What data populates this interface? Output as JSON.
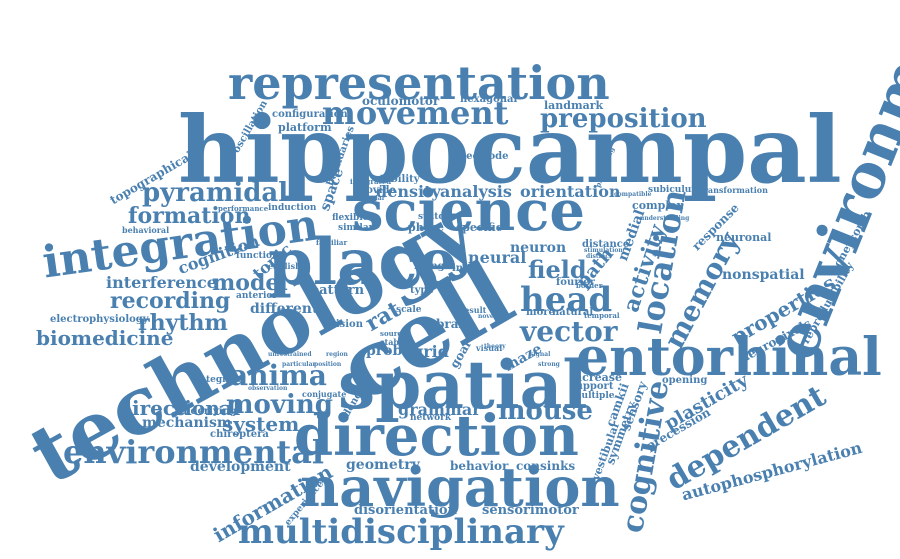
{
  "colors": {
    "word": "#4a80b0",
    "background": "#ffffff"
  },
  "words": [
    "hippocampal",
    "technology",
    "cell",
    "spatial",
    "environment",
    "place",
    "science",
    "navigation",
    "direction",
    "entorhinal",
    "representation",
    "integration",
    "multidisciplinary",
    "movement",
    "cognitive",
    "head",
    "location",
    "vector",
    "environmental",
    "dependent",
    "memory",
    "anima",
    "preposition",
    "pyramidal",
    "moving",
    "mouse",
    "formation",
    "field",
    "recording",
    "rhythm",
    "activity",
    "biomedicine",
    "directional",
    "model",
    "properties",
    "system",
    "information",
    "plasticity",
    "autophosphorylation",
    "cognition",
    "interference",
    "path",
    "neural",
    "analysis",
    "orientation",
    "grammar",
    "geometry",
    "development",
    "mechanism",
    "nonspatial",
    "disorientation",
    "sensorimotor",
    "behavior",
    "consinks",
    "topographical",
    "oculomotor",
    "grid",
    "probe",
    "rat",
    "topic",
    "density",
    "space",
    "reproducibility",
    "neuron",
    "medial",
    "maze",
    "platform",
    "honeycomb",
    "electrophysiology",
    "different",
    "underlying",
    "chiroptera",
    "sensory",
    "symmetry",
    "vestibular",
    "camkii",
    "precession",
    "neuropixels",
    "landmark",
    "hexagonal",
    "configuration",
    "oscillation",
    "stability",
    "integrated",
    "provide",
    "electrode",
    "boundaries",
    "complex",
    "response",
    "neuronal",
    "subiculum",
    "transformation",
    "phase",
    "switch",
    "specific",
    "distance",
    "fourier",
    "natural",
    "more",
    "brain",
    "pattern",
    "anterior",
    "function",
    "english",
    "vision",
    "dendrite",
    "scale",
    "firing",
    "input",
    "type",
    "goal",
    "increase",
    "support",
    "multiple",
    "opening",
    "integrate",
    "experience",
    "network",
    "stable",
    "conjugate",
    "behavioral",
    "performance",
    "induction",
    "flexible",
    "similar",
    "familiar",
    "unrestrained",
    "particular",
    "position",
    "observation",
    "visual",
    "temporal",
    "result",
    "source",
    "region",
    "compatible",
    "processing",
    "theory",
    "strong",
    "signal",
    "understanding",
    "distinct",
    "stimulation",
    "border",
    "regular",
    "novel"
  ]
}
